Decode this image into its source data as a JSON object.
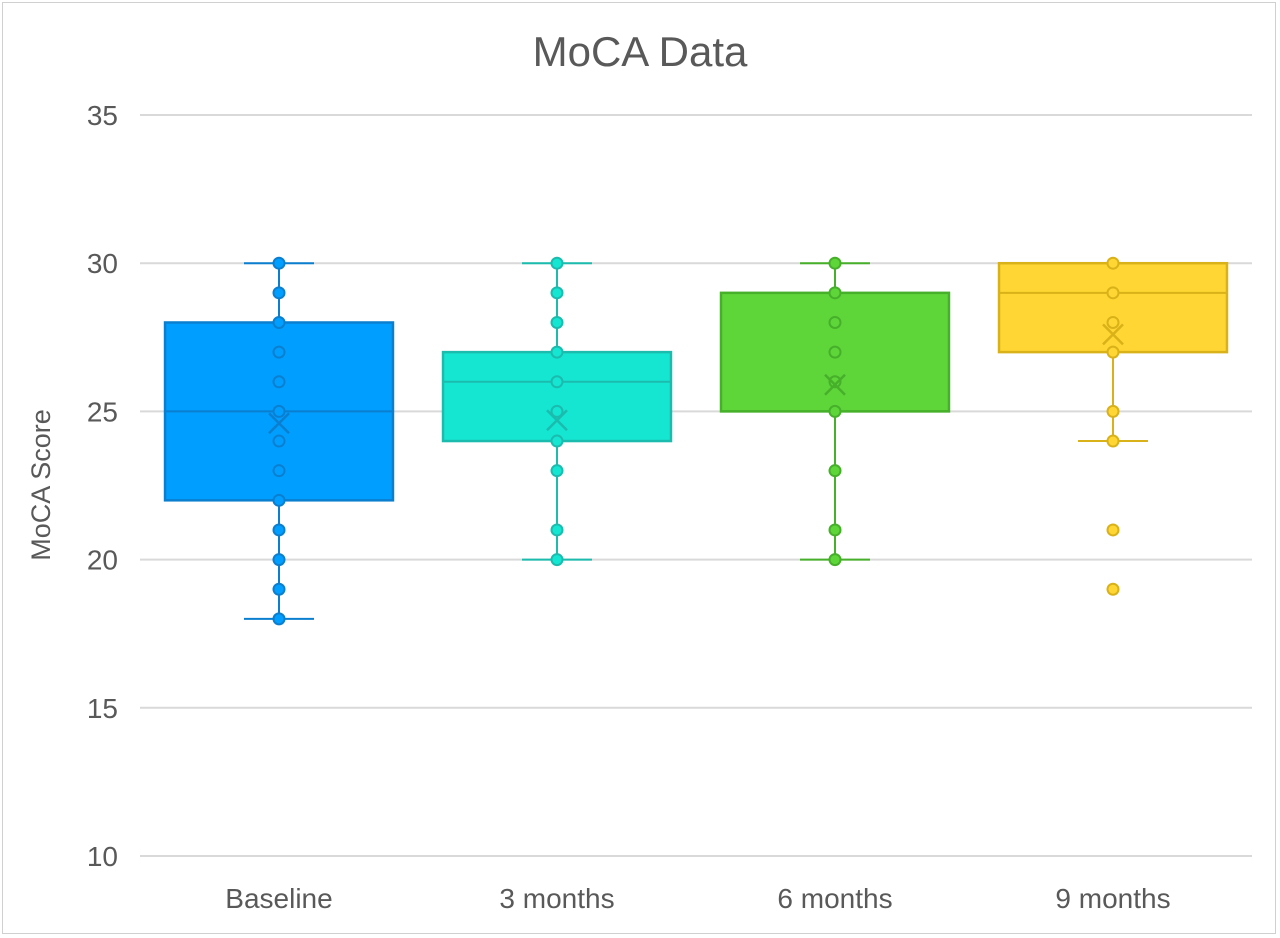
{
  "chart_data": {
    "type": "boxplot",
    "title": "MoCA Data",
    "xlabel": "",
    "ylabel": "MoCA Score",
    "ylim": [
      10,
      35
    ],
    "yticks": [
      10,
      15,
      20,
      25,
      30,
      35
    ],
    "grid": true,
    "legend": "none",
    "categories": [
      "Baseline",
      "3 months",
      "6 months",
      "9 months"
    ],
    "series": [
      {
        "category": "Baseline",
        "color": "#009eff",
        "stroke": "#0b7fcf",
        "min": 18,
        "q1": 22,
        "median": 25,
        "q3": 28,
        "max": 30,
        "mean": 24.6,
        "points": [
          30,
          29,
          28,
          27,
          26,
          25,
          24,
          23,
          22,
          21,
          20,
          19,
          18
        ],
        "outliers": []
      },
      {
        "category": "3 months",
        "color": "#14e6d2",
        "stroke": "#1bbcae",
        "min": 20,
        "q1": 24,
        "median": 26,
        "q3": 27,
        "max": 30,
        "mean": 24.7,
        "points": [
          30,
          29,
          28,
          27,
          26,
          25,
          24,
          23,
          21,
          20
        ],
        "outliers": []
      },
      {
        "category": "6 months",
        "color": "#5ed63a",
        "stroke": "#46b02a",
        "min": 20,
        "q1": 25,
        "median": 25,
        "q3": 29,
        "max": 30,
        "mean": 25.9,
        "points": [
          30,
          29,
          28,
          27,
          26,
          25,
          23,
          21,
          20
        ],
        "outliers": []
      },
      {
        "category": "9 months",
        "color": "#ffd633",
        "stroke": "#d9b21a",
        "min": 24,
        "q1": 27,
        "median": 29,
        "q3": 30,
        "max": 30,
        "mean": 27.6,
        "points": [
          30,
          29,
          28,
          27,
          25,
          24
        ],
        "outliers": [
          21,
          19
        ]
      }
    ]
  }
}
